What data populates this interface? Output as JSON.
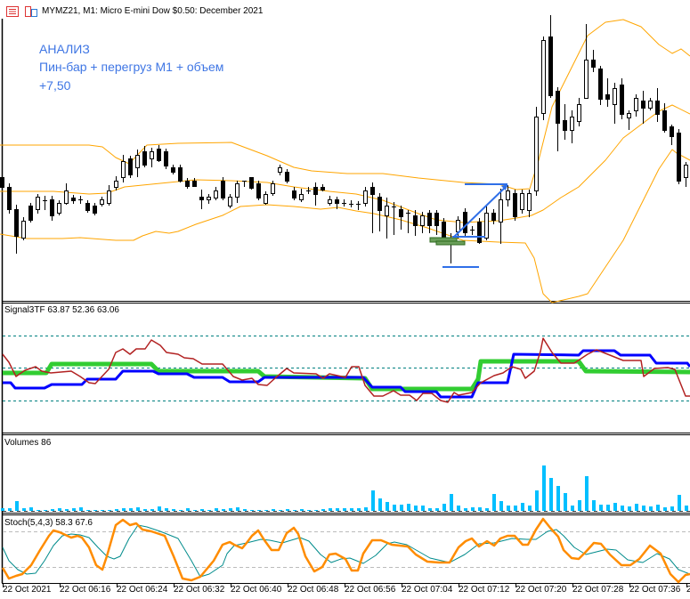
{
  "window": {
    "title": "MYMZ21, M1:  Micro E-mini Dow $0.50: December 2021",
    "icons": [
      "list-icon",
      "chart-window-icon"
    ]
  },
  "annotation": {
    "line1": "АНАЛИЗ",
    "line2": "Пин-бар + перегруз М1 + объем",
    "line3": "+7,50",
    "color": "#3f76e4"
  },
  "panels": {
    "signal": {
      "label": "Signal3TF 63.87 52.36 63.06",
      "colors": {
        "green": "#32cd32",
        "blue": "#0000ff",
        "red": "#b22222",
        "levels": "#008080"
      }
    },
    "volumes": {
      "label": "Volumes 86",
      "color": "#00bfff"
    },
    "stoch": {
      "label": "Stoch(5,4,3) 58.3 67.6",
      "main_color": "#ff8c00",
      "signal_color": "#008b8b",
      "levels": [
        20,
        80
      ]
    }
  },
  "main_chart": {
    "bollinger_color": "#ffa500",
    "drawing_color": "#2f6fe8",
    "pinbar_zone_color": "#6b9f5a"
  },
  "time_axis": [
    "22 Oct 2021",
    "22 Oct 06:16",
    "22 Oct 06:24",
    "22 Oct 06:32",
    "22 Oct 06:40",
    "22 Oct 06:48",
    "22 Oct 06:56",
    "22 Oct 07:04",
    "22 Oct 07:12",
    "22 Oct 07:20",
    "22 Oct 07:28",
    "22 Oct 07:36",
    "2"
  ]
}
